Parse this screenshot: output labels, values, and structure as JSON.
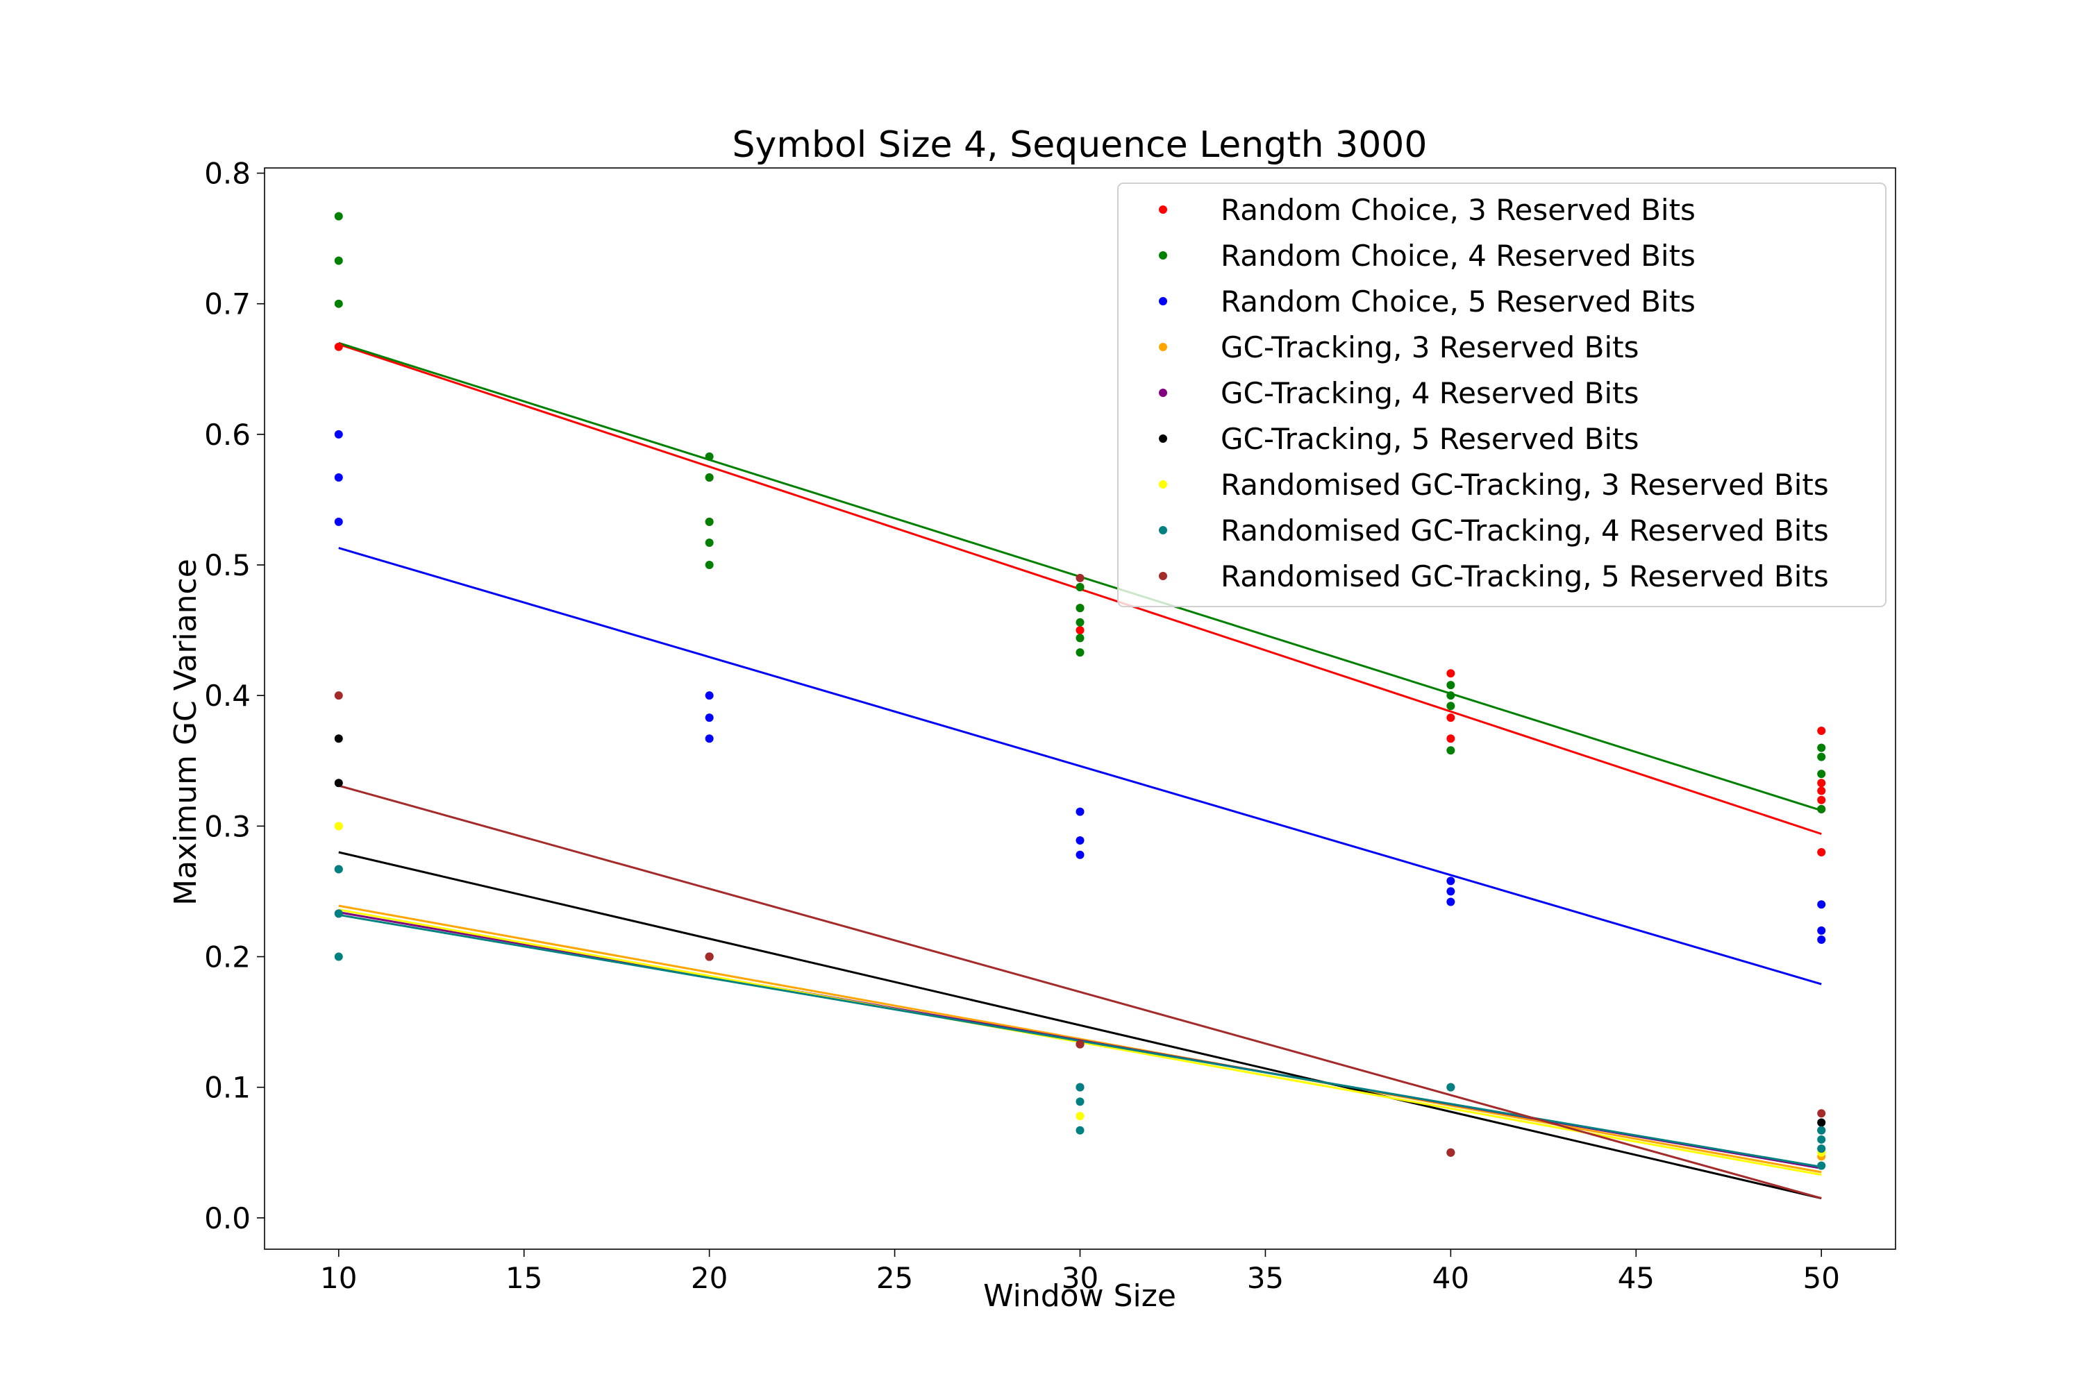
{
  "chart_data": {
    "type": "scatter",
    "title": "Symbol Size 4, Sequence Length 3000",
    "xlabel": "Window Size",
    "ylabel": "Maximum GC Variance",
    "xlim": [
      8,
      52
    ],
    "ylim": [
      -0.024,
      0.804
    ],
    "xticks": [
      10,
      15,
      20,
      25,
      30,
      35,
      40,
      45,
      50
    ],
    "yticks": [
      0.0,
      0.1,
      0.2,
      0.3,
      0.4,
      0.5,
      0.6,
      0.7,
      0.8
    ],
    "legend_position": "top-right",
    "grid": false,
    "series": [
      {
        "name": "Random Choice, 3 Reserved Bits",
        "color": "#ff0000",
        "points": [
          [
            10,
            0.667
          ],
          [
            20,
            0.567
          ],
          [
            20,
            0.533
          ],
          [
            30,
            0.483
          ],
          [
            30,
            0.467
          ],
          [
            30,
            0.45
          ],
          [
            40,
            0.417
          ],
          [
            40,
            0.383
          ],
          [
            40,
            0.367
          ],
          [
            50,
            0.373
          ],
          [
            50,
            0.333
          ],
          [
            50,
            0.327
          ],
          [
            50,
            0.32
          ],
          [
            50,
            0.313
          ],
          [
            50,
            0.28
          ]
        ],
        "fit": [
          [
            10,
            0.669
          ],
          [
            50,
            0.294
          ]
        ]
      },
      {
        "name": "Random Choice, 4 Reserved Bits",
        "color": "#008000",
        "points": [
          [
            10,
            0.767
          ],
          [
            10,
            0.733
          ],
          [
            10,
            0.7
          ],
          [
            20,
            0.583
          ],
          [
            20,
            0.567
          ],
          [
            20,
            0.533
          ],
          [
            20,
            0.517
          ],
          [
            20,
            0.5
          ],
          [
            30,
            0.483
          ],
          [
            30,
            0.467
          ],
          [
            30,
            0.456
          ],
          [
            30,
            0.444
          ],
          [
            30,
            0.433
          ],
          [
            40,
            0.408
          ],
          [
            40,
            0.4
          ],
          [
            40,
            0.392
          ],
          [
            40,
            0.358
          ],
          [
            50,
            0.36
          ],
          [
            50,
            0.353
          ],
          [
            50,
            0.34
          ],
          [
            50,
            0.313
          ]
        ],
        "fit": [
          [
            10,
            0.67
          ],
          [
            50,
            0.312
          ]
        ]
      },
      {
        "name": "Random Choice, 5 Reserved Bits",
        "color": "#0000ff",
        "points": [
          [
            10,
            0.6
          ],
          [
            10,
            0.567
          ],
          [
            10,
            0.533
          ],
          [
            20,
            0.4
          ],
          [
            20,
            0.383
          ],
          [
            20,
            0.367
          ],
          [
            30,
            0.311
          ],
          [
            30,
            0.289
          ],
          [
            30,
            0.278
          ],
          [
            40,
            0.258
          ],
          [
            40,
            0.25
          ],
          [
            40,
            0.242
          ],
          [
            50,
            0.24
          ],
          [
            50,
            0.22
          ],
          [
            50,
            0.213
          ]
        ],
        "fit": [
          [
            10,
            0.513
          ],
          [
            50,
            0.179
          ]
        ]
      },
      {
        "name": "GC-Tracking, 3 Reserved Bits",
        "color": "#ffa500",
        "points": [
          [
            10,
            0.3
          ],
          [
            20,
            0.2
          ],
          [
            30,
            0.133
          ],
          [
            50,
            0.053
          ],
          [
            50,
            0.047
          ]
        ],
        "fit": [
          [
            10,
            0.239
          ],
          [
            50,
            0.035
          ]
        ]
      },
      {
        "name": "GC-Tracking, 4 Reserved Bits",
        "color": "#800080",
        "points": [
          [
            10,
            0.267
          ],
          [
            10,
            0.233
          ],
          [
            20,
            0.2
          ],
          [
            30,
            0.1
          ],
          [
            40,
            0.1
          ],
          [
            50,
            0.067
          ]
        ],
        "fit": [
          [
            10,
            0.234
          ],
          [
            50,
            0.038
          ]
        ]
      },
      {
        "name": "GC-Tracking, 5 Reserved Bits",
        "color": "#000000",
        "points": [
          [
            10,
            0.367
          ],
          [
            10,
            0.333
          ],
          [
            20,
            0.2
          ],
          [
            30,
            0.133
          ],
          [
            40,
            0.05
          ],
          [
            50,
            0.073
          ]
        ],
        "fit": [
          [
            10,
            0.28
          ],
          [
            50,
            0.015
          ]
        ]
      },
      {
        "name": "Randomised GC-Tracking, 3 Reserved Bits",
        "color": "#ffff00",
        "points": [
          [
            10,
            0.3
          ],
          [
            30,
            0.078
          ],
          [
            50,
            0.05
          ],
          [
            50,
            0.04
          ]
        ],
        "fit": [
          [
            10,
            0.236
          ],
          [
            50,
            0.033
          ]
        ]
      },
      {
        "name": "Randomised GC-Tracking, 4 Reserved Bits",
        "color": "#008080",
        "points": [
          [
            10,
            0.267
          ],
          [
            10,
            0.233
          ],
          [
            10,
            0.2
          ],
          [
            30,
            0.1
          ],
          [
            30,
            0.089
          ],
          [
            30,
            0.067
          ],
          [
            40,
            0.1
          ],
          [
            50,
            0.067
          ],
          [
            50,
            0.06
          ],
          [
            50,
            0.053
          ],
          [
            50,
            0.04
          ]
        ],
        "fit": [
          [
            10,
            0.232
          ],
          [
            50,
            0.039
          ]
        ]
      },
      {
        "name": "Randomised GC-Tracking, 5 Reserved Bits",
        "color": "#a52a2a",
        "points": [
          [
            10,
            0.4
          ],
          [
            20,
            0.2
          ],
          [
            30,
            0.133
          ],
          [
            30,
            0.49
          ],
          [
            40,
            0.05
          ],
          [
            50,
            0.08
          ]
        ],
        "fit": [
          [
            10,
            0.331
          ],
          [
            50,
            0.015
          ]
        ]
      }
    ]
  }
}
